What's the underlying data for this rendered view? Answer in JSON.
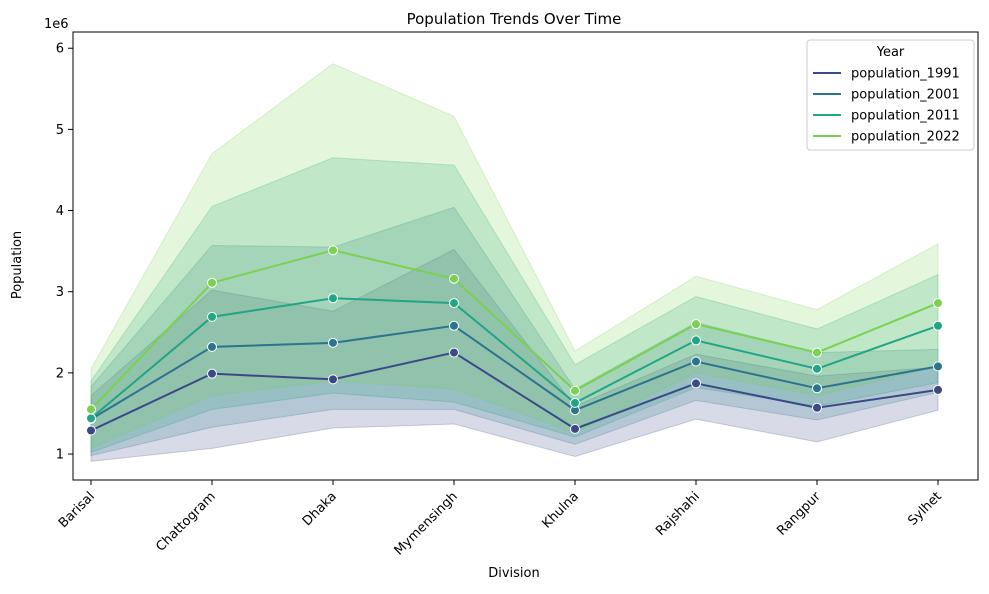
{
  "chart_data": {
    "type": "line",
    "title": "Population Trends Over Time",
    "xlabel": "Division",
    "ylabel": "Population",
    "y_offset_label": "1e6",
    "ylim": [
      0.68,
      6.2
    ],
    "yticks": [
      1,
      2,
      3,
      4,
      5,
      6
    ],
    "categories": [
      "Barisal",
      "Chattogram",
      "Dhaka",
      "Mymensingh",
      "Khulna",
      "Rajshahi",
      "Rangpur",
      "Sylhet"
    ],
    "legend": {
      "title": "Year",
      "position": "top-right"
    },
    "series": [
      {
        "name": "population_1991",
        "color": "#3b4a87",
        "values": [
          1.29,
          1.99,
          1.92,
          2.25,
          1.31,
          1.87,
          1.57,
          1.79
        ],
        "ci_low": [
          0.91,
          1.07,
          1.32,
          1.37,
          0.97,
          1.43,
          1.15,
          1.54
        ],
        "ci_high": [
          1.72,
          3.02,
          2.76,
          3.52,
          1.59,
          2.23,
          1.96,
          2.07
        ]
      },
      {
        "name": "population_2001",
        "color": "#2c738e",
        "values": [
          1.43,
          2.32,
          2.37,
          2.58,
          1.54,
          2.14,
          1.81,
          2.08
        ],
        "ci_low": [
          0.98,
          1.33,
          1.55,
          1.55,
          1.12,
          1.66,
          1.42,
          1.76
        ],
        "ci_high": [
          1.83,
          3.57,
          3.55,
          4.04,
          1.8,
          2.62,
          2.25,
          2.29
        ]
      },
      {
        "name": "population_2011",
        "color": "#21a585",
        "values": [
          1.44,
          2.69,
          2.92,
          2.86,
          1.63,
          2.4,
          2.05,
          2.58
        ],
        "ci_low": [
          1.02,
          1.55,
          1.75,
          1.64,
          1.21,
          1.82,
          1.59,
          1.88
        ],
        "ci_high": [
          1.9,
          4.05,
          4.65,
          4.56,
          2.1,
          2.94,
          2.54,
          3.21
        ]
      },
      {
        "name": "population_2022",
        "color": "#7ad151",
        "values": [
          1.55,
          3.11,
          3.51,
          3.16,
          1.78,
          2.6,
          2.25,
          2.86
        ],
        "ci_low": [
          1.07,
          1.72,
          1.9,
          1.8,
          1.26,
          2.0,
          1.72,
          2.08
        ],
        "ci_high": [
          2.05,
          4.7,
          5.81,
          5.16,
          2.27,
          3.19,
          2.78,
          3.59
        ]
      }
    ]
  }
}
